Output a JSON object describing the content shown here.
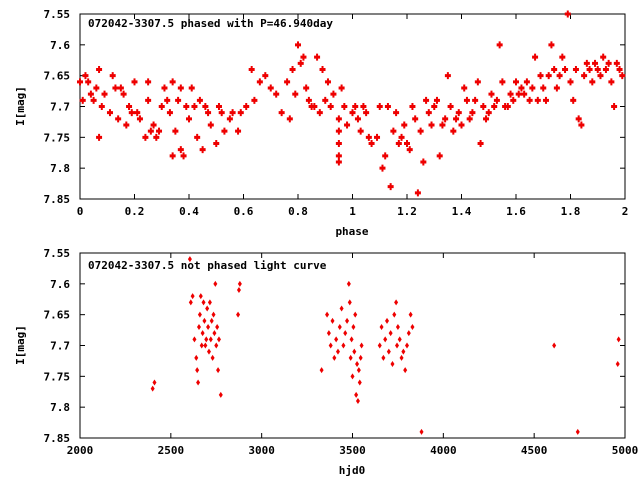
{
  "chart_data": [
    {
      "type": "scatter",
      "title": "072042-3307.5 phased with P=46.940day",
      "xlabel": "phase",
      "ylabel": "I[mag]",
      "xlim": [
        0,
        2
      ],
      "ylim": [
        7.55,
        7.85
      ],
      "y_inverted": true,
      "grid": false,
      "marker_color": "#ee0000",
      "xticks": [
        0,
        0.2,
        0.4,
        0.6,
        0.8,
        1,
        1.2,
        1.4,
        1.6,
        1.8,
        2
      ],
      "xtick_labels": [
        "0",
        "0.2",
        "0.4",
        "0.6",
        "0.8",
        "1",
        "1.2",
        "1.4",
        "1.6",
        "1.8",
        "2"
      ],
      "yticks": [
        7.55,
        7.6,
        7.65,
        7.7,
        7.75,
        7.8,
        7.85
      ],
      "ytick_labels": [
        "7.55",
        "7.6",
        "7.65",
        "7.7",
        "7.75",
        "7.8",
        "7.85"
      ],
      "points": [
        [
          0.0,
          7.66
        ],
        [
          0.01,
          7.69
        ],
        [
          0.02,
          7.65
        ],
        [
          0.03,
          7.66
        ],
        [
          0.04,
          7.68
        ],
        [
          0.05,
          7.69
        ],
        [
          0.06,
          7.67
        ],
        [
          0.07,
          7.64
        ],
        [
          0.07,
          7.75
        ],
        [
          0.08,
          7.7
        ],
        [
          0.09,
          7.68
        ],
        [
          0.11,
          7.71
        ],
        [
          0.12,
          7.65
        ],
        [
          0.13,
          7.67
        ],
        [
          0.14,
          7.72
        ],
        [
          0.15,
          7.67
        ],
        [
          0.16,
          7.68
        ],
        [
          0.17,
          7.73
        ],
        [
          0.18,
          7.7
        ],
        [
          0.19,
          7.71
        ],
        [
          0.2,
          7.66
        ],
        [
          0.21,
          7.71
        ],
        [
          0.22,
          7.72
        ],
        [
          0.24,
          7.75
        ],
        [
          0.25,
          7.66
        ],
        [
          0.25,
          7.69
        ],
        [
          0.26,
          7.74
        ],
        [
          0.27,
          7.73
        ],
        [
          0.28,
          7.75
        ],
        [
          0.29,
          7.74
        ],
        [
          0.3,
          7.7
        ],
        [
          0.31,
          7.67
        ],
        [
          0.32,
          7.69
        ],
        [
          0.33,
          7.71
        ],
        [
          0.34,
          7.66
        ],
        [
          0.34,
          7.78
        ],
        [
          0.35,
          7.74
        ],
        [
          0.36,
          7.69
        ],
        [
          0.37,
          7.77
        ],
        [
          0.37,
          7.67
        ],
        [
          0.38,
          7.78
        ],
        [
          0.39,
          7.7
        ],
        [
          0.4,
          7.72
        ],
        [
          0.41,
          7.67
        ],
        [
          0.42,
          7.7
        ],
        [
          0.43,
          7.75
        ],
        [
          0.44,
          7.69
        ],
        [
          0.45,
          7.77
        ],
        [
          0.46,
          7.7
        ],
        [
          0.47,
          7.71
        ],
        [
          0.48,
          7.73
        ],
        [
          0.5,
          7.76
        ],
        [
          0.51,
          7.7
        ],
        [
          0.52,
          7.71
        ],
        [
          0.53,
          7.74
        ],
        [
          0.55,
          7.72
        ],
        [
          0.56,
          7.71
        ],
        [
          0.58,
          7.74
        ],
        [
          0.59,
          7.71
        ],
        [
          0.61,
          7.7
        ],
        [
          0.63,
          7.64
        ],
        [
          0.64,
          7.69
        ],
        [
          0.66,
          7.66
        ],
        [
          0.68,
          7.65
        ],
        [
          0.7,
          7.67
        ],
        [
          0.72,
          7.68
        ],
        [
          0.74,
          7.71
        ],
        [
          0.76,
          7.66
        ],
        [
          0.77,
          7.72
        ],
        [
          0.78,
          7.64
        ],
        [
          0.79,
          7.68
        ],
        [
          0.8,
          7.6
        ],
        [
          0.81,
          7.63
        ],
        [
          0.82,
          7.62
        ],
        [
          0.83,
          7.67
        ],
        [
          0.84,
          7.69
        ],
        [
          0.85,
          7.7
        ],
        [
          0.86,
          7.7
        ],
        [
          0.87,
          7.62
        ],
        [
          0.88,
          7.71
        ],
        [
          0.89,
          7.64
        ],
        [
          0.9,
          7.69
        ],
        [
          0.91,
          7.66
        ],
        [
          0.92,
          7.7
        ],
        [
          0.93,
          7.68
        ],
        [
          0.95,
          7.72
        ],
        [
          0.95,
          7.74
        ],
        [
          0.95,
          7.76
        ],
        [
          0.95,
          7.78
        ],
        [
          0.95,
          7.79
        ],
        [
          0.96,
          7.67
        ],
        [
          0.97,
          7.7
        ],
        [
          0.98,
          7.73
        ],
        [
          1.0,
          7.71
        ],
        [
          1.01,
          7.7
        ],
        [
          1.02,
          7.72
        ],
        [
          1.03,
          7.74
        ],
        [
          1.04,
          7.7
        ],
        [
          1.05,
          7.71
        ],
        [
          1.06,
          7.75
        ],
        [
          1.07,
          7.76
        ],
        [
          1.09,
          7.75
        ],
        [
          1.1,
          7.7
        ],
        [
          1.11,
          7.8
        ],
        [
          1.12,
          7.78
        ],
        [
          1.13,
          7.7
        ],
        [
          1.14,
          7.83
        ],
        [
          1.15,
          7.74
        ],
        [
          1.16,
          7.71
        ],
        [
          1.17,
          7.76
        ],
        [
          1.18,
          7.75
        ],
        [
          1.19,
          7.73
        ],
        [
          1.2,
          7.76
        ],
        [
          1.21,
          7.77
        ],
        [
          1.22,
          7.7
        ],
        [
          1.23,
          7.72
        ],
        [
          1.24,
          7.84
        ],
        [
          1.25,
          7.74
        ],
        [
          1.26,
          7.79
        ],
        [
          1.27,
          7.69
        ],
        [
          1.28,
          7.71
        ],
        [
          1.29,
          7.73
        ],
        [
          1.3,
          7.7
        ],
        [
          1.31,
          7.69
        ],
        [
          1.32,
          7.78
        ],
        [
          1.33,
          7.73
        ],
        [
          1.34,
          7.72
        ],
        [
          1.35,
          7.65
        ],
        [
          1.36,
          7.7
        ],
        [
          1.37,
          7.74
        ],
        [
          1.38,
          7.72
        ],
        [
          1.39,
          7.71
        ],
        [
          1.4,
          7.73
        ],
        [
          1.41,
          7.67
        ],
        [
          1.42,
          7.69
        ],
        [
          1.43,
          7.72
        ],
        [
          1.44,
          7.71
        ],
        [
          1.45,
          7.69
        ],
        [
          1.46,
          7.66
        ],
        [
          1.47,
          7.76
        ],
        [
          1.48,
          7.7
        ],
        [
          1.49,
          7.72
        ],
        [
          1.5,
          7.71
        ],
        [
          1.51,
          7.68
        ],
        [
          1.52,
          7.7
        ],
        [
          1.53,
          7.69
        ],
        [
          1.54,
          7.6
        ],
        [
          1.55,
          7.66
        ],
        [
          1.56,
          7.7
        ],
        [
          1.57,
          7.7
        ],
        [
          1.58,
          7.68
        ],
        [
          1.59,
          7.69
        ],
        [
          1.6,
          7.66
        ],
        [
          1.61,
          7.68
        ],
        [
          1.62,
          7.67
        ],
        [
          1.63,
          7.68
        ],
        [
          1.64,
          7.66
        ],
        [
          1.65,
          7.69
        ],
        [
          1.66,
          7.67
        ],
        [
          1.67,
          7.62
        ],
        [
          1.68,
          7.69
        ],
        [
          1.69,
          7.65
        ],
        [
          1.7,
          7.67
        ],
        [
          1.71,
          7.69
        ],
        [
          1.72,
          7.65
        ],
        [
          1.73,
          7.6
        ],
        [
          1.74,
          7.64
        ],
        [
          1.75,
          7.67
        ],
        [
          1.76,
          7.65
        ],
        [
          1.77,
          7.62
        ],
        [
          1.78,
          7.64
        ],
        [
          1.79,
          7.55
        ],
        [
          1.8,
          7.66
        ],
        [
          1.81,
          7.69
        ],
        [
          1.82,
          7.64
        ],
        [
          1.83,
          7.72
        ],
        [
          1.84,
          7.73
        ],
        [
          1.85,
          7.65
        ],
        [
          1.86,
          7.63
        ],
        [
          1.87,
          7.64
        ],
        [
          1.88,
          7.66
        ],
        [
          1.89,
          7.63
        ],
        [
          1.9,
          7.64
        ],
        [
          1.91,
          7.65
        ],
        [
          1.92,
          7.62
        ],
        [
          1.93,
          7.64
        ],
        [
          1.94,
          7.63
        ],
        [
          1.95,
          7.66
        ],
        [
          1.96,
          7.7
        ],
        [
          1.97,
          7.63
        ],
        [
          1.98,
          7.64
        ],
        [
          1.99,
          7.65
        ]
      ]
    },
    {
      "type": "scatter",
      "title": "072042-3307.5 not phased light curve",
      "xlabel": "hjd0",
      "ylabel": "I[mag]",
      "xlim": [
        2000,
        5000
      ],
      "ylim": [
        7.55,
        7.85
      ],
      "y_inverted": true,
      "grid": false,
      "marker_color": "#ee0000",
      "xticks": [
        2000,
        2500,
        3000,
        3500,
        4000,
        4500,
        5000
      ],
      "xtick_labels": [
        "2000",
        "2500",
        "3000",
        "3500",
        "4000",
        "4500",
        "5000"
      ],
      "yticks": [
        7.55,
        7.6,
        7.65,
        7.7,
        7.75,
        7.8,
        7.85
      ],
      "ytick_labels": [
        "7.55",
        "7.6",
        "7.65",
        "7.7",
        "7.75",
        "7.8",
        "7.85"
      ],
      "points": [
        [
          2400,
          7.77
        ],
        [
          2410,
          7.76
        ],
        [
          2605,
          7.56
        ],
        [
          2610,
          7.63
        ],
        [
          2620,
          7.62
        ],
        [
          2630,
          7.69
        ],
        [
          2640,
          7.72
        ],
        [
          2645,
          7.74
        ],
        [
          2650,
          7.76
        ],
        [
          2655,
          7.67
        ],
        [
          2660,
          7.65
        ],
        [
          2665,
          7.62
        ],
        [
          2670,
          7.7
        ],
        [
          2675,
          7.68
        ],
        [
          2680,
          7.63
        ],
        [
          2685,
          7.66
        ],
        [
          2690,
          7.7
        ],
        [
          2695,
          7.69
        ],
        [
          2700,
          7.64
        ],
        [
          2705,
          7.67
        ],
        [
          2710,
          7.71
        ],
        [
          2715,
          7.63
        ],
        [
          2720,
          7.69
        ],
        [
          2725,
          7.66
        ],
        [
          2730,
          7.72
        ],
        [
          2735,
          7.65
        ],
        [
          2740,
          7.68
        ],
        [
          2745,
          7.6
        ],
        [
          2750,
          7.7
        ],
        [
          2755,
          7.67
        ],
        [
          2760,
          7.74
        ],
        [
          2765,
          7.69
        ],
        [
          2775,
          7.78
        ],
        [
          2870,
          7.65
        ],
        [
          2875,
          7.61
        ],
        [
          2880,
          7.6
        ],
        [
          3330,
          7.74
        ],
        [
          3360,
          7.65
        ],
        [
          3370,
          7.68
        ],
        [
          3380,
          7.7
        ],
        [
          3390,
          7.66
        ],
        [
          3400,
          7.72
        ],
        [
          3410,
          7.69
        ],
        [
          3420,
          7.71
        ],
        [
          3430,
          7.67
        ],
        [
          3440,
          7.64
        ],
        [
          3450,
          7.7
        ],
        [
          3460,
          7.68
        ],
        [
          3470,
          7.66
        ],
        [
          3480,
          7.6
        ],
        [
          3485,
          7.63
        ],
        [
          3490,
          7.72
        ],
        [
          3495,
          7.69
        ],
        [
          3500,
          7.75
        ],
        [
          3505,
          7.67
        ],
        [
          3510,
          7.71
        ],
        [
          3515,
          7.65
        ],
        [
          3520,
          7.78
        ],
        [
          3525,
          7.73
        ],
        [
          3530,
          7.79
        ],
        [
          3535,
          7.74
        ],
        [
          3540,
          7.76
        ],
        [
          3545,
          7.72
        ],
        [
          3550,
          7.7
        ],
        [
          3650,
          7.7
        ],
        [
          3660,
          7.67
        ],
        [
          3670,
          7.72
        ],
        [
          3680,
          7.69
        ],
        [
          3690,
          7.66
        ],
        [
          3700,
          7.71
        ],
        [
          3710,
          7.68
        ],
        [
          3720,
          7.73
        ],
        [
          3730,
          7.65
        ],
        [
          3740,
          7.63
        ],
        [
          3745,
          7.7
        ],
        [
          3750,
          7.67
        ],
        [
          3760,
          7.69
        ],
        [
          3770,
          7.72
        ],
        [
          3780,
          7.71
        ],
        [
          3790,
          7.74
        ],
        [
          3800,
          7.7
        ],
        [
          3810,
          7.68
        ],
        [
          3820,
          7.65
        ],
        [
          3830,
          7.67
        ],
        [
          3880,
          7.84
        ],
        [
          4610,
          7.7
        ],
        [
          4740,
          7.84
        ],
        [
          4960,
          7.73
        ],
        [
          4965,
          7.69
        ]
      ]
    }
  ]
}
